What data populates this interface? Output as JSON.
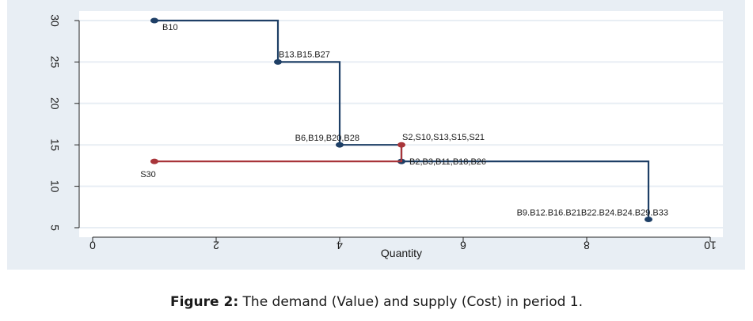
{
  "chart_data": {
    "type": "line",
    "xlabel": "Quantity",
    "ylabel": "",
    "xlim": [
      0,
      10
    ],
    "ylim": [
      5,
      30
    ],
    "xticks": [
      0,
      2,
      4,
      6,
      8,
      10
    ],
    "yticks": [
      5,
      10,
      15,
      20,
      25,
      30
    ],
    "grid": "horizontal",
    "colors": {
      "demand": "#1e3f66",
      "supply": "#a8353a"
    },
    "series": [
      {
        "key": "demand",
        "step": true,
        "points": [
          [
            1,
            30
          ],
          [
            3,
            25
          ],
          [
            4,
            15
          ],
          [
            5,
            13
          ],
          [
            9,
            6
          ]
        ]
      },
      {
        "key": "supply",
        "step": true,
        "points": [
          [
            1,
            13
          ],
          [
            5,
            15
          ]
        ]
      }
    ],
    "point_labels": [
      {
        "text": "B10",
        "x": 1,
        "y": 30,
        "place": "below-right"
      },
      {
        "text": "B13.B15.B27",
        "x": 3,
        "y": 25,
        "place": "above-right"
      },
      {
        "text": "B6,B19,B20,B28",
        "x": 4,
        "y": 15,
        "place": "above-left"
      },
      {
        "text": "S2,S10,S13,S15,S21",
        "x": 5,
        "y": 15,
        "place": "above-right"
      },
      {
        "text": "B2,B3,B11,B18,B26",
        "x": 5,
        "y": 13,
        "place": "right"
      },
      {
        "text": "S30",
        "x": 1,
        "y": 13,
        "place": "below"
      },
      {
        "text": "B9.B12.B16.B21B22.B24.B24.B29.B33",
        "x": 9,
        "y": 6,
        "place": "above-left"
      }
    ]
  },
  "caption": {
    "label": "Figure 2:",
    "text": " The demand (Value) and supply (Cost) in period 1."
  }
}
